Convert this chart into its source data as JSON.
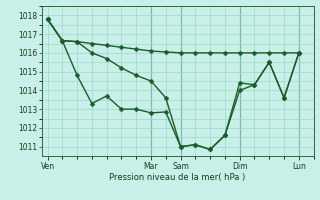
{
  "background_color": "#c8f0e8",
  "grid_color": "#98d8cc",
  "line_color": "#1a5c2a",
  "marker_color": "#1a5c2a",
  "xlabel": "Pression niveau de la mer( hPa )",
  "ylim": [
    1010.5,
    1018.5
  ],
  "yticks": [
    1011,
    1012,
    1013,
    1014,
    1015,
    1016,
    1017,
    1018
  ],
  "xtick_labels": [
    "Ven",
    "Mar",
    "Sam",
    "Dim",
    "Lun"
  ],
  "xtick_positions": [
    0,
    35,
    45,
    65,
    85
  ],
  "xmin": -2,
  "xmax": 90,
  "vlines_x": [
    35,
    45,
    65,
    85
  ],
  "line1_x": [
    0,
    5,
    10,
    15,
    20,
    25,
    30,
    35,
    40,
    45,
    50,
    55,
    60,
    65,
    70,
    75,
    80,
    85
  ],
  "line1_y": [
    1017.8,
    1016.65,
    1016.6,
    1016.5,
    1016.4,
    1016.3,
    1016.2,
    1016.1,
    1016.05,
    1016.0,
    1016.0,
    1016.0,
    1016.0,
    1016.0,
    1016.0,
    1016.0,
    1016.0,
    1016.0
  ],
  "line2_x": [
    0,
    5,
    10,
    15,
    20,
    25,
    30,
    35,
    40,
    45,
    50,
    55,
    60,
    65,
    70,
    75,
    80,
    85
  ],
  "line2_y": [
    1017.8,
    1016.65,
    1014.8,
    1013.3,
    1013.7,
    1013.0,
    1013.0,
    1012.8,
    1012.85,
    1011.0,
    1011.1,
    1010.85,
    1011.6,
    1014.0,
    1014.3,
    1015.5,
    1013.6,
    1016.0
  ],
  "line3_x": [
    0,
    5,
    10,
    15,
    20,
    25,
    30,
    35,
    40,
    45,
    50,
    55,
    60,
    65,
    70,
    75,
    80,
    85
  ],
  "line3_y": [
    1017.8,
    1016.65,
    1016.6,
    1016.0,
    1015.7,
    1015.2,
    1014.8,
    1014.5,
    1013.6,
    1011.0,
    1011.1,
    1010.85,
    1011.6,
    1014.4,
    1014.3,
    1015.5,
    1013.6,
    1016.0
  ]
}
